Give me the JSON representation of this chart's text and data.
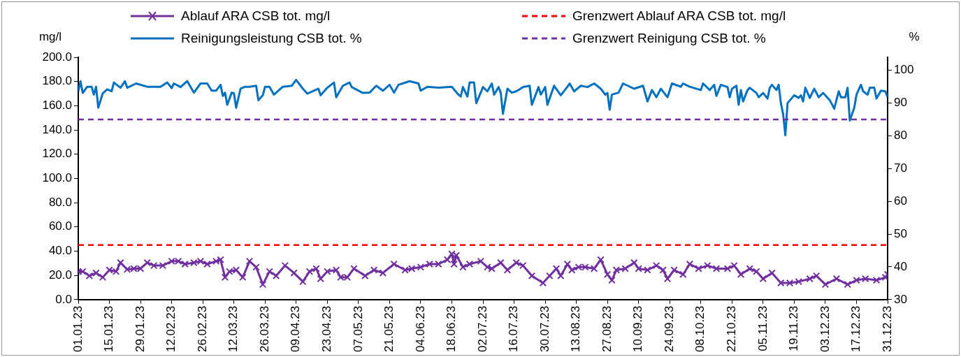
{
  "chart_data": {
    "type": "line",
    "ylabel": "mg/l",
    "y2label": "%",
    "xlim": [
      "--01-01",
      "--12-31"
    ],
    "xticks": [
      {
        "value": "--01-01",
        "label": "01.01.23"
      },
      {
        "value": "--01-15",
        "label": "15.01.23"
      },
      {
        "value": "--01-29",
        "label": "29.01.23"
      },
      {
        "value": "--02-12",
        "label": "12.02.23"
      },
      {
        "value": "--02-26",
        "label": "26.02.23"
      },
      {
        "value": "--03-12",
        "label": "12.03.23"
      },
      {
        "value": "--03-26",
        "label": "26.03.23"
      },
      {
        "value": "--04-09",
        "label": "09.04.23"
      },
      {
        "value": "--04-23",
        "label": "23.04.23"
      },
      {
        "value": "--05-07",
        "label": "07.05.23"
      },
      {
        "value": "--05-21",
        "label": "21.05.23"
      },
      {
        "value": "--06-04",
        "label": "04.06.23"
      },
      {
        "value": "--06-18",
        "label": "18.06.23"
      },
      {
        "value": "--07-02",
        "label": "02.07.23"
      },
      {
        "value": "--07-16",
        "label": "16.07.23"
      },
      {
        "value": "--07-30",
        "label": "30.07.23"
      },
      {
        "value": "--08-13",
        "label": "13.08.23"
      },
      {
        "value": "--08-27",
        "label": "27.08.23"
      },
      {
        "value": "--09-10",
        "label": "10.09.23"
      },
      {
        "value": "--09-24",
        "label": "24.09.23"
      },
      {
        "value": "--10-08",
        "label": "08.10.23"
      },
      {
        "value": "--10-22",
        "label": "22.10.23"
      },
      {
        "value": "--11-05",
        "label": "05.11.23"
      },
      {
        "value": "--11-19",
        "label": "19.11.23"
      },
      {
        "value": "--12-03",
        "label": "03.12.23"
      },
      {
        "value": "--12-17",
        "label": "17.12.23"
      },
      {
        "value": "--12-31",
        "label": "31.12.23"
      }
    ],
    "ylim": [
      0,
      200
    ],
    "yticks": [
      {
        "value": 0,
        "label": "0.0"
      },
      {
        "value": 20,
        "label": "20.0"
      },
      {
        "value": 40,
        "label": "40.0"
      },
      {
        "value": 60,
        "label": "60.0"
      },
      {
        "value": 80,
        "label": "80.0"
      },
      {
        "value": 100,
        "label": "100.0"
      },
      {
        "value": 120,
        "label": "120.0"
      },
      {
        "value": 140,
        "label": "140.0"
      },
      {
        "value": 160,
        "label": "160.0"
      },
      {
        "value": 180,
        "label": "180.0"
      },
      {
        "value": 200,
        "label": "200.0"
      }
    ],
    "y2lim": [
      30,
      104
    ],
    "y2ticks": [
      30,
      40,
      50,
      60,
      70,
      80,
      90,
      100
    ],
    "legend": "top",
    "series": [
      {
        "name": "Ablauf ARA CSB tot. mg/l",
        "color": "#7030a0",
        "marker": "cross",
        "x": [
          "--01-01",
          "--01-03",
          "--01-06",
          "--01-09",
          "--01-12",
          "--01-15",
          "--01-18",
          "--01-20",
          "--01-23",
          "--01-26",
          "--01-29",
          "--02-01",
          "--02-04",
          "--02-08",
          "--02-12",
          "--02-15",
          "--02-18",
          "--02-22",
          "--02-25",
          "--02-28",
          "--03-04",
          "--03-06",
          "--03-08",
          "--03-10",
          "--03-13",
          "--03-16",
          "--03-19",
          "--03-22",
          "--03-25",
          "--03-28",
          "--03-31",
          "--04-04",
          "--04-08",
          "--04-12",
          "--04-15",
          "--04-18",
          "--04-20",
          "--04-23",
          "--04-27",
          "--04-29",
          "--05-02",
          "--05-05",
          "--05-10",
          "--05-14",
          "--05-18",
          "--05-23",
          "--05-28",
          "--05-31",
          "--06-04",
          "--06-08",
          "--06-12",
          "--06-16",
          "--06-18",
          "--06-19",
          "--06-20",
          "--06-23",
          "--06-26",
          "--07-01",
          "--07-04",
          "--07-06",
          "--07-10",
          "--07-13",
          "--07-17",
          "--07-20",
          "--07-24",
          "--07-29",
          "--08-01",
          "--08-04",
          "--08-06",
          "--08-09",
          "--08-11",
          "--08-14",
          "--08-17",
          "--08-21",
          "--08-24",
          "--08-27",
          "--08-29",
          "--08-31",
          "--09-04",
          "--09-08",
          "--09-10",
          "--09-14",
          "--09-18",
          "--09-21",
          "--09-23",
          "--09-26",
          "--09-30",
          "--10-03",
          "--10-07",
          "--10-11",
          "--10-15",
          "--10-20",
          "--10-23",
          "--10-26",
          "--10-30",
          "--11-02",
          "--11-05",
          "--11-09",
          "--11-13",
          "--11-17",
          "--11-21",
          "--11-26",
          "--11-29",
          "--12-03",
          "--12-08",
          "--12-13",
          "--12-17",
          "--12-21",
          "--12-26",
          "--12-30",
          "--12-31"
        ],
        "values": [
          23.2,
          23.2,
          19.6,
          22.0,
          18.4,
          24.4,
          23.2,
          30.5,
          24.9,
          25.6,
          25.6,
          30.5,
          28.1,
          28.1,
          31.7,
          31.7,
          29.3,
          30.5,
          31.7,
          29.3,
          31.7,
          32.9,
          18.4,
          23.2,
          24.4,
          18.4,
          31.7,
          26.8,
          12.5,
          23.2,
          19.6,
          28.1,
          22.0,
          14.8,
          23.2,
          25.6,
          17.2,
          23.2,
          24.4,
          18.4,
          18.4,
          25.6,
          19.6,
          24.4,
          22.0,
          29.3,
          24.4,
          25.6,
          26.8,
          29.3,
          29.3,
          32.9,
          37.7,
          29.3,
          36.5,
          26.8,
          29.3,
          31.7,
          26.8,
          25.6,
          30.5,
          24.4,
          30.5,
          28.1,
          19.6,
          13.7,
          19.6,
          25.6,
          19.6,
          29.3,
          24.4,
          26.8,
          26.8,
          25.6,
          32.9,
          20.8,
          16.0,
          24.4,
          25.6,
          30.5,
          25.6,
          24.4,
          28.1,
          24.4,
          17.2,
          24.4,
          20.8,
          29.3,
          25.6,
          28.1,
          25.6,
          25.6,
          28.1,
          20.8,
          25.6,
          23.2,
          17.2,
          22.0,
          13.7,
          13.7,
          14.8,
          17.2,
          19.6,
          12.5,
          17.2,
          12.5,
          16.0,
          17.2,
          16.0,
          18.4,
          20.8
        ]
      },
      {
        "name": "Reinigungsleistung CSB tot. %",
        "color": "#0070c0",
        "axis": "y2",
        "x": [
          "--01-01",
          "--01-02",
          "--01-03",
          "--01-05",
          "--01-07",
          "--01-08",
          "--01-09",
          "--01-10",
          "--01-12",
          "--01-14",
          "--01-16",
          "--01-17",
          "--01-20",
          "--01-22",
          "--01-23",
          "--01-27",
          "--02-01",
          "--02-07",
          "--02-10",
          "--02-12",
          "--02-13",
          "--02-16",
          "--02-19",
          "--02-22",
          "--02-25",
          "--02-28",
          "--03-02",
          "--03-04",
          "--03-06",
          "--03-07",
          "--03-08",
          "--03-09",
          "--03-11",
          "--03-12",
          "--03-13",
          "--03-15",
          "--03-17",
          "--03-19",
          "--03-22",
          "--03-23",
          "--03-25",
          "--03-26",
          "--03-28",
          "--03-30",
          "--04-03",
          "--04-07",
          "--04-09",
          "--04-12",
          "--04-14",
          "--04-19",
          "--04-20",
          "--04-23",
          "--04-26",
          "--04-27",
          "--04-30",
          "--05-03",
          "--05-04",
          "--05-09",
          "--05-12",
          "--05-15",
          "--05-18",
          "--05-21",
          "--05-23",
          "--05-25",
          "--05-30",
          "--06-03",
          "--06-04",
          "--06-07",
          "--06-12",
          "--06-18",
          "--06-21",
          "--06-22",
          "--06-23",
          "--06-25",
          "--06-26",
          "--06-28",
          "--06-29",
          "--07-01",
          "--07-02",
          "--07-04",
          "--07-06",
          "--07-07",
          "--07-09",
          "--07-10",
          "--07-11",
          "--07-13",
          "--07-15",
          "--07-17",
          "--07-20",
          "--07-23",
          "--07-24",
          "--07-27",
          "--07-28",
          "--07-30",
          "--07-31",
          "--08-03",
          "--08-06",
          "--08-09",
          "--08-10",
          "--08-12",
          "--08-15",
          "--08-18",
          "--08-21",
          "--08-24",
          "--08-26",
          "--08-27",
          "--08-28",
          "--08-29",
          "--09-01",
          "--09-03",
          "--09-08",
          "--09-12",
          "--09-14",
          "--09-16",
          "--09-18",
          "--09-20",
          "--09-23",
          "--09-25",
          "--09-29",
          "--09-30",
          "--10-03",
          "--10-08",
          "--10-09",
          "--10-12",
          "--10-14",
          "--10-15",
          "--10-17",
          "--10-20",
          "--10-21",
          "--10-22",
          "--10-24",
          "--10-25",
          "--10-26",
          "--10-27",
          "--10-29",
          "--10-30",
          "--11-02",
          "--11-03",
          "--11-05",
          "--11-07",
          "--11-08",
          "--11-09",
          "--11-11",
          "--11-12",
          "--11-13",
          "--11-14",
          "--11-15",
          "--11-16",
          "--11-19",
          "--11-21",
          "--11-22",
          "--11-23",
          "--11-24",
          "--11-26",
          "--11-28",
          "--11-30",
          "--12-02",
          "--12-05",
          "--12-07",
          "--12-09",
          "--12-10",
          "--12-12",
          "--12-13",
          "--12-14",
          "--12-16",
          "--12-17",
          "--12-19",
          "--12-20",
          "--12-22",
          "--12-23",
          "--12-25",
          "--12-26",
          "--12-28",
          "--12-30",
          "--12-31"
        ],
        "values": [
          93.6,
          96.7,
          93.1,
          95.0,
          95.0,
          92.6,
          95.0,
          88.6,
          93.0,
          94.2,
          93.6,
          96.3,
          94.7,
          96.7,
          94.7,
          96.0,
          95.0,
          95.0,
          96.3,
          94.6,
          96.0,
          94.9,
          96.7,
          93.2,
          96.0,
          96.0,
          93.8,
          93.8,
          95.6,
          92.2,
          93.2,
          89.5,
          93.2,
          93.0,
          88.6,
          94.4,
          95.0,
          95.0,
          95.3,
          90.9,
          92.4,
          95.0,
          95.0,
          92.6,
          95.0,
          95.3,
          97.1,
          94.4,
          92.9,
          94.4,
          92.4,
          94.7,
          96.3,
          91.8,
          95.3,
          96.3,
          94.9,
          93.1,
          93.2,
          95.3,
          93.8,
          95.6,
          93.2,
          95.6,
          96.7,
          96.0,
          93.8,
          95.0,
          94.7,
          95.0,
          92.6,
          92.0,
          94.9,
          92.0,
          96.3,
          96.3,
          90.0,
          93.2,
          94.9,
          93.6,
          96.0,
          92.6,
          94.9,
          93.2,
          86.7,
          94.4,
          93.2,
          93.6,
          94.9,
          95.3,
          89.5,
          94.9,
          92.6,
          94.9,
          89.5,
          95.3,
          92.4,
          95.0,
          96.0,
          93.6,
          95.3,
          94.9,
          96.0,
          94.4,
          92.6,
          93.1,
          88.0,
          92.6,
          93.2,
          96.0,
          94.4,
          95.3,
          90.5,
          94.0,
          91.8,
          94.4,
          91.8,
          96.0,
          95.0,
          96.0,
          95.0,
          94.0,
          96.0,
          94.0,
          95.6,
          92.2,
          95.6,
          94.9,
          91.8,
          94.4,
          95.3,
          89.5,
          94.0,
          90.5,
          94.0,
          94.7,
          93.1,
          91.8,
          93.1,
          91.4,
          94.7,
          95.6,
          94.0,
          95.6,
          90.0,
          86.7,
          80.2,
          90.0,
          92.4,
          91.6,
          92.4,
          90.5,
          94.7,
          91.6,
          94.4,
          91.8,
          93.1,
          90.9,
          88.3,
          93.6,
          91.8,
          91.8,
          94.7,
          84.7,
          88.6,
          92.6,
          95.6,
          93.6,
          92.6,
          94.7,
          94.7,
          91.4,
          93.8,
          93.6,
          91.8
        ]
      }
    ],
    "ref_lines": [
      {
        "axis": "y",
        "value": 45,
        "label": "Grenzwert Ablauf ARA CSB tot. mg/l",
        "color": "#ff0000",
        "line_style": "dashed"
      },
      {
        "axis": "y2",
        "value": 85,
        "label": "Grenzwert Reinigung CSB tot. %",
        "color": "#7030a0",
        "line_style": "dashed"
      }
    ]
  }
}
